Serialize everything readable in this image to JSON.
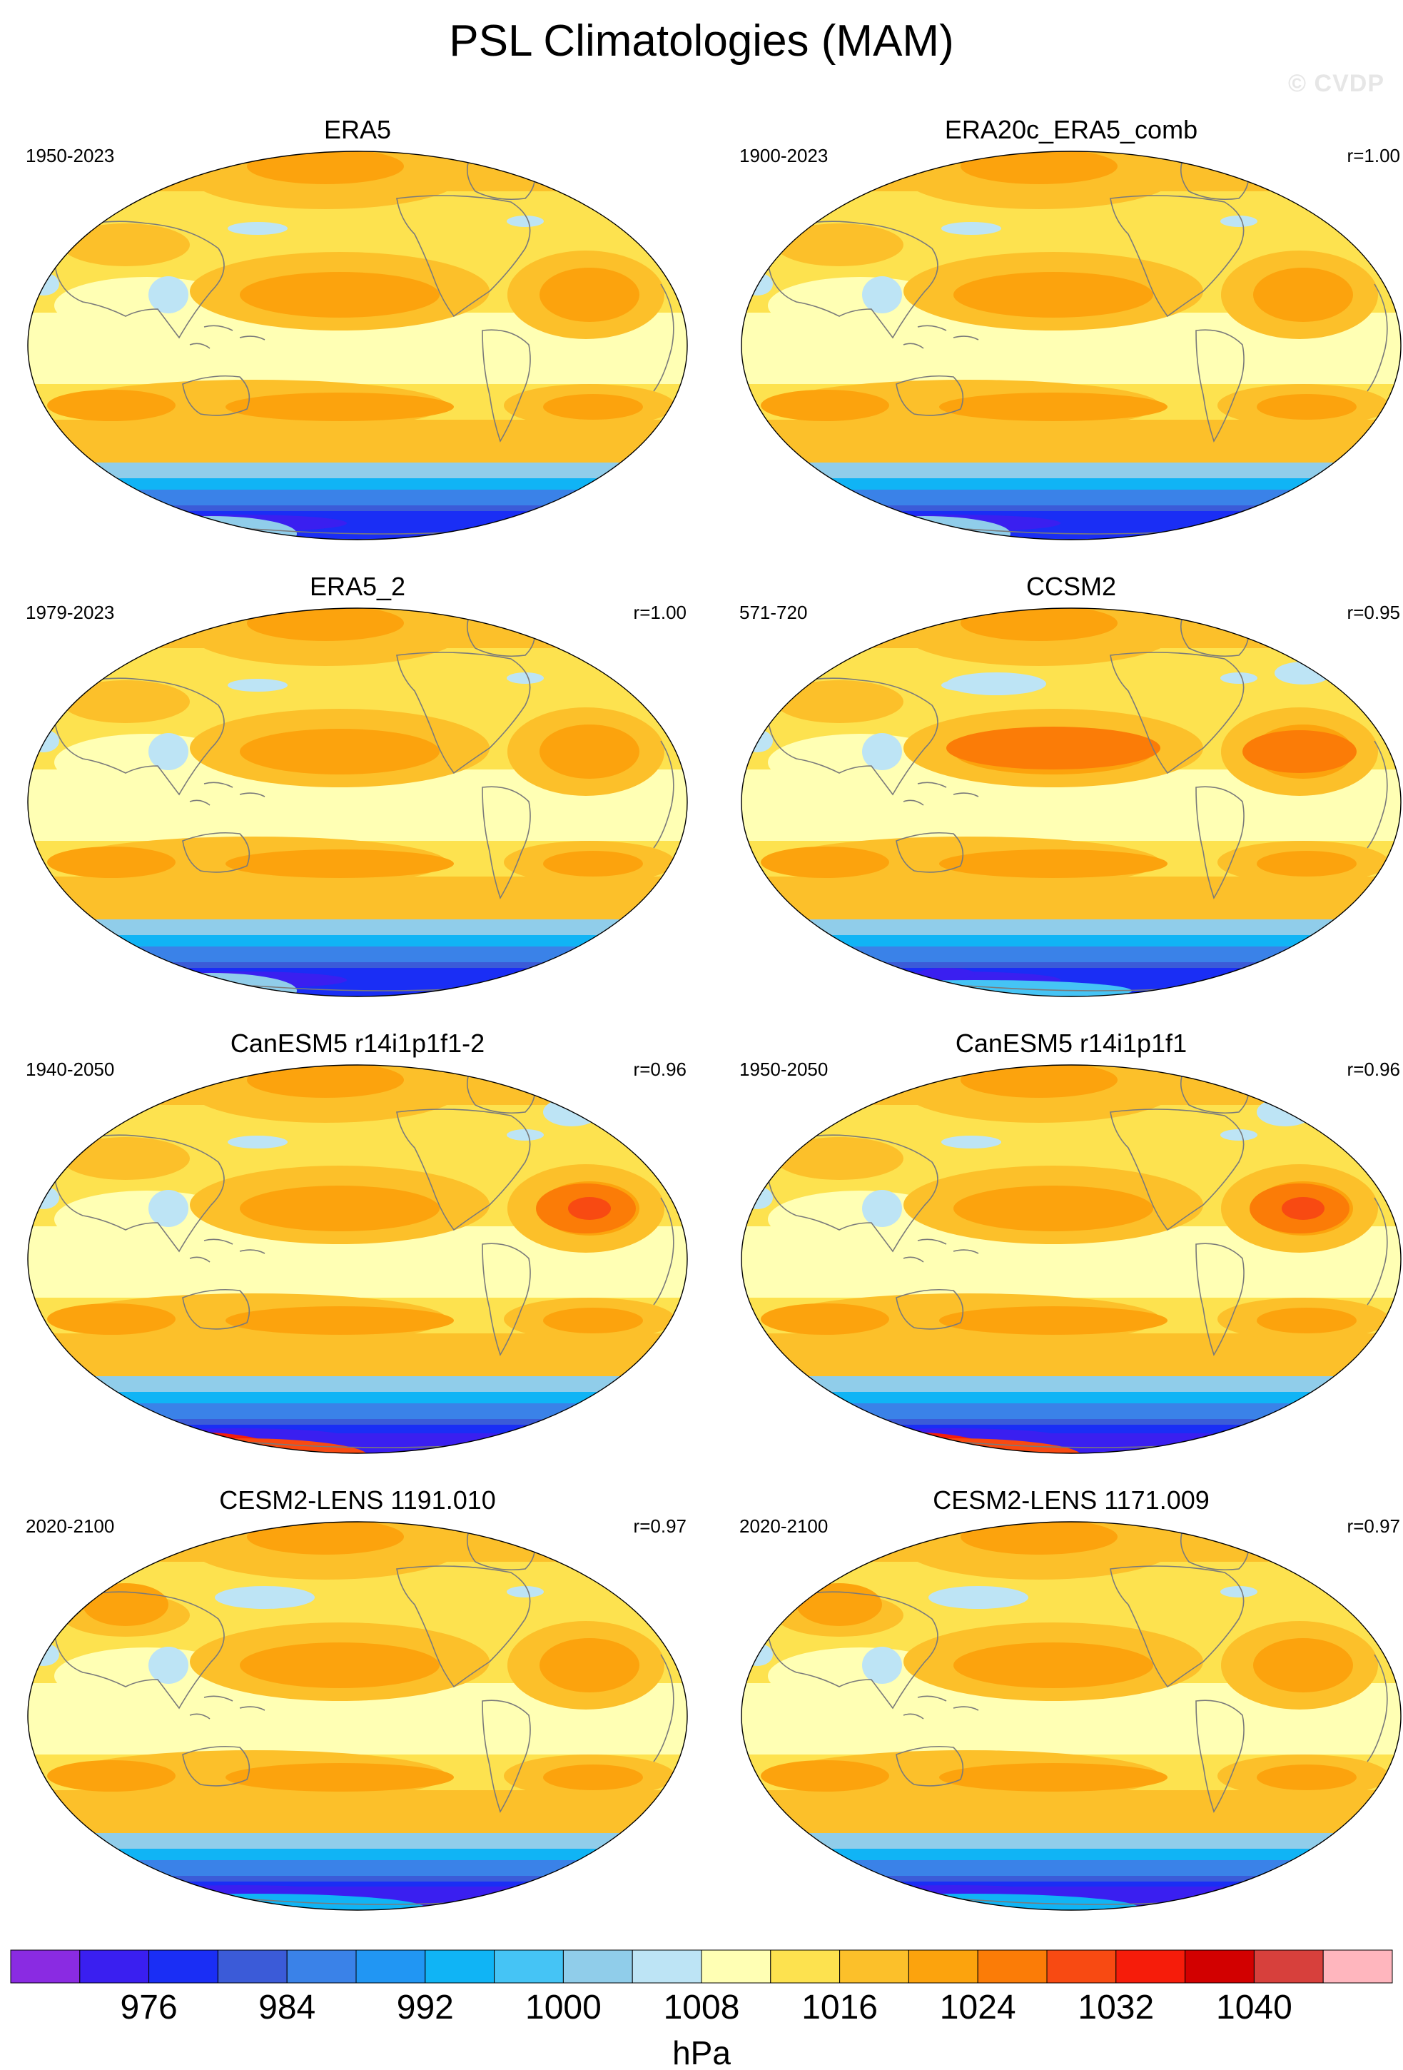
{
  "figure": {
    "title": "PSL Climatologies (MAM)",
    "watermark": "© CVDP"
  },
  "panels": [
    {
      "title": "ERA5",
      "years": "1950-2023",
      "corr": "",
      "variant": "obs"
    },
    {
      "title": "ERA20c_ERA5_comb",
      "years": "1900-2023",
      "corr": "r=1.00",
      "variant": "obs"
    },
    {
      "title": "ERA5_2",
      "years": "1979-2023",
      "corr": "r=1.00",
      "variant": "obs"
    },
    {
      "title": "CCSM2",
      "years": "571-720",
      "corr": "r=0.95",
      "variant": "ccsm"
    },
    {
      "title": "CanESM5 r14i1p1f1-2",
      "years": "1940-2050",
      "corr": "r=0.96",
      "variant": "canesm"
    },
    {
      "title": "CanESM5 r14i1p1f1",
      "years": "1950-2050",
      "corr": "r=0.96",
      "variant": "canesm"
    },
    {
      "title": "CESM2-LENS 1191.010",
      "years": "2020-2100",
      "corr": "r=0.97",
      "variant": "cesm"
    },
    {
      "title": "CESM2-LENS 1171.009",
      "years": "2020-2100",
      "corr": "r=0.97",
      "variant": "cesm"
    }
  ],
  "colorbar": {
    "colors": [
      "#8a2be2",
      "#3a1ff0",
      "#1a2ef5",
      "#3b5bd8",
      "#3a82e8",
      "#2196f3",
      "#10b4f5",
      "#45c4f5",
      "#90cdea",
      "#bde4f5",
      "#ffffb4",
      "#fde24f",
      "#fcc02a",
      "#fca30d",
      "#fb7c07",
      "#f84a12",
      "#f61c0a",
      "#d20000",
      "#d7403c",
      "#ffb6be"
    ],
    "tick_labels": [
      "976",
      "984",
      "992",
      "1000",
      "1008",
      "1016",
      "1024",
      "1032",
      "1040"
    ],
    "units": "hPa"
  }
}
